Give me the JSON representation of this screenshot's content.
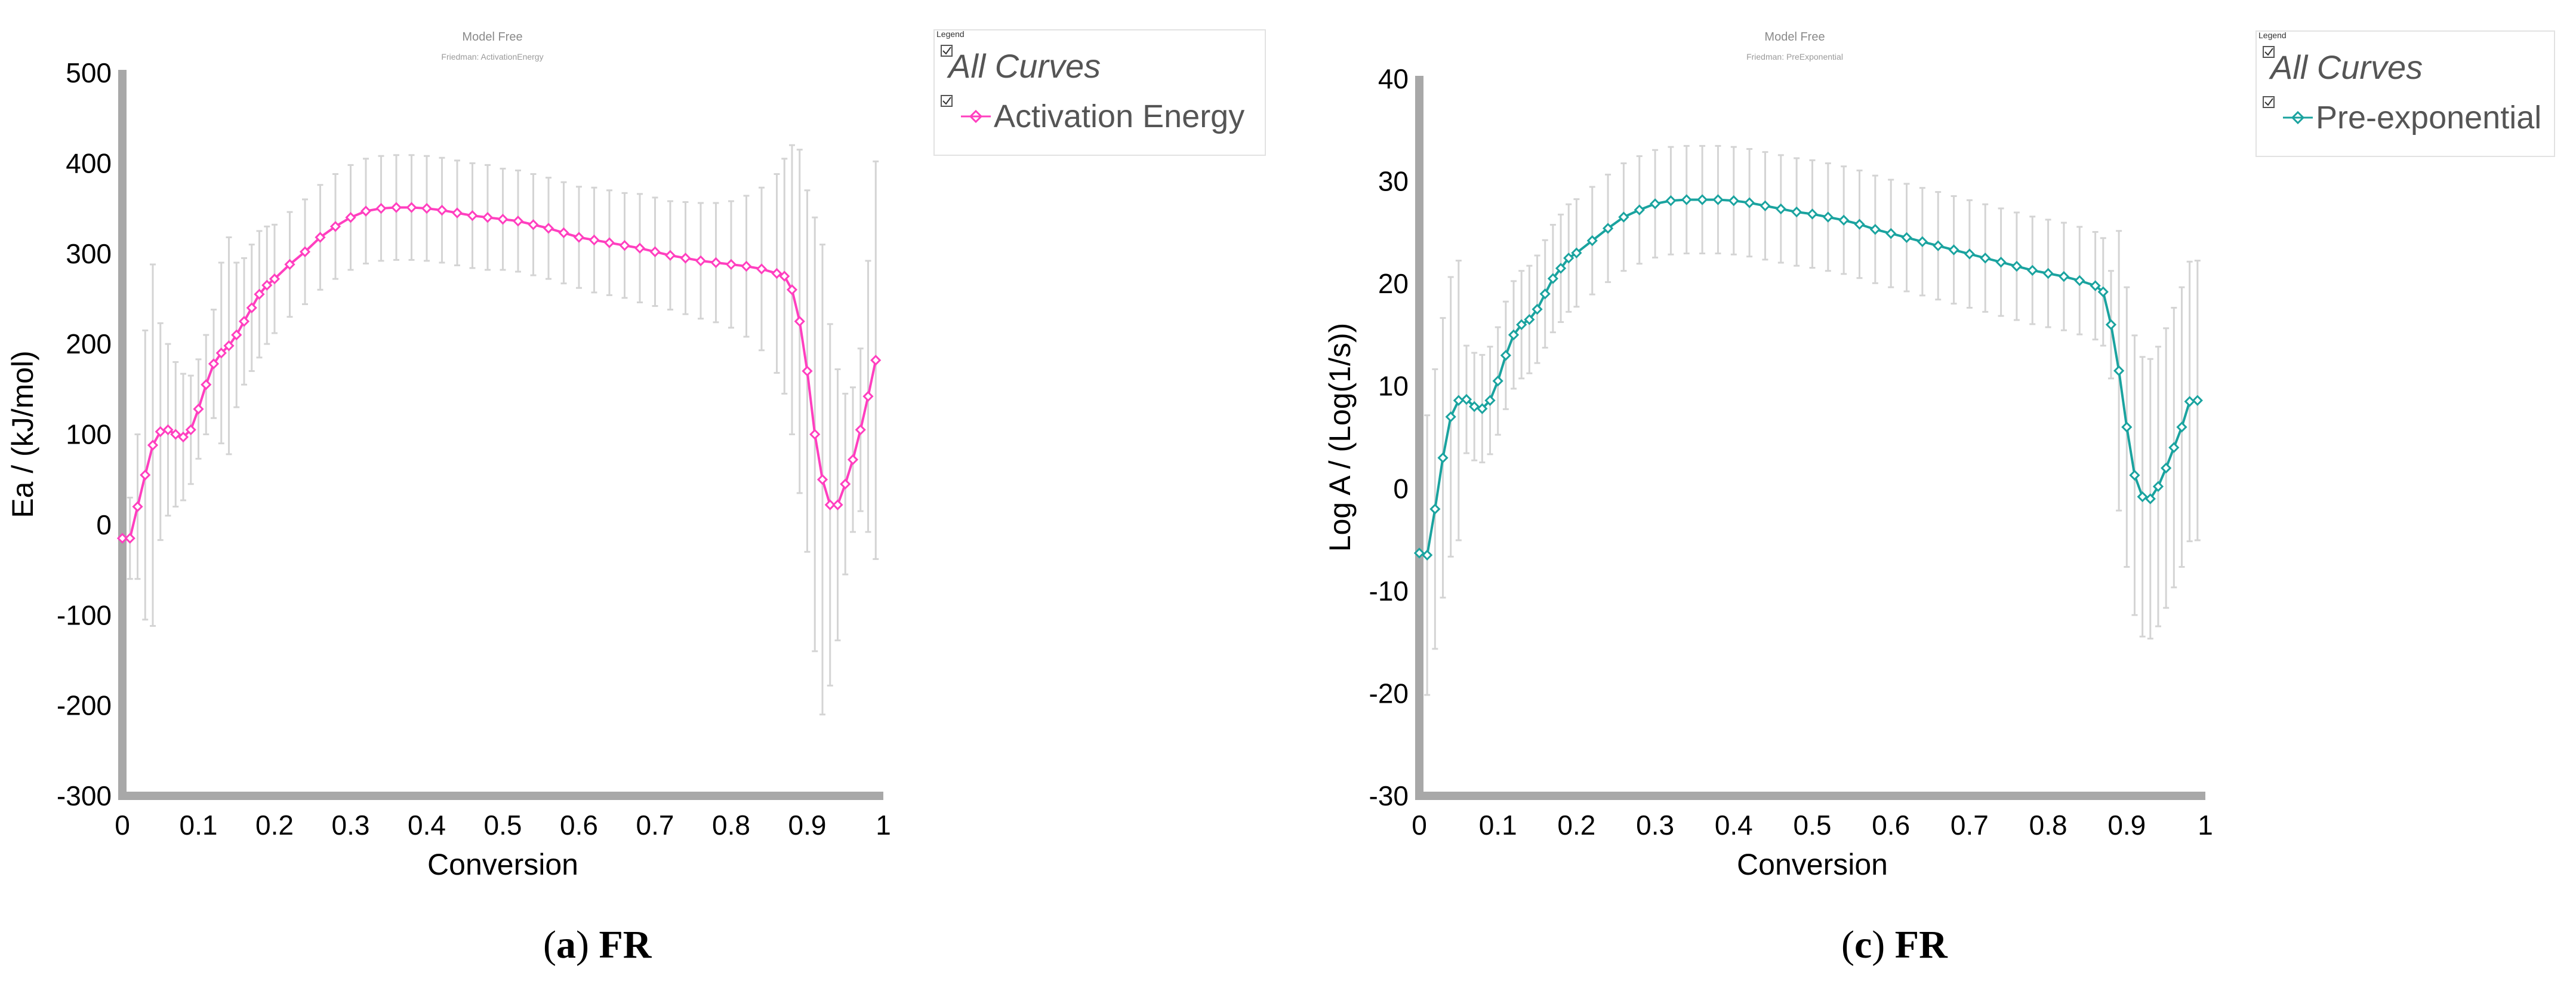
{
  "charts": [
    {
      "header_title": "Model Free",
      "header_subtitle": "Friedman: ActivationEnergy",
      "legend_title": "Legend",
      "legend_items": [
        "All Curves",
        "Activation Energy"
      ],
      "caption_prefix": "(",
      "caption_letter": "a",
      "caption_suffix": ") ",
      "caption_bold": "FR"
    },
    {
      "header_title": "Model Free",
      "header_subtitle": "Friedman: PreExponential",
      "legend_title": "Legend",
      "legend_items": [
        "All Curves",
        "Pre-exponential"
      ],
      "caption_prefix": "(",
      "caption_letter": "c",
      "caption_suffix": ") ",
      "caption_bold": "FR"
    }
  ],
  "chart_data": [
    {
      "type": "line",
      "title": "Model Free",
      "subtitle": "Friedman: ActivationEnergy",
      "xlabel": "Conversion",
      "ylabel": "Ea / (kJ/mol)",
      "xlim": [
        0,
        1
      ],
      "ylim": [
        -300,
        500
      ],
      "xticks": [
        "0",
        "0.1",
        "0.2",
        "0.3",
        "0.4",
        "0.5",
        "0.6",
        "0.7",
        "0.8",
        "0.9",
        "1"
      ],
      "yticks": [
        "500",
        "400",
        "300",
        "200",
        "100",
        "0",
        "-100",
        "-200",
        "-300"
      ],
      "color": "#ff3fbf",
      "series": [
        {
          "name": "Activation Energy",
          "error_bars": true,
          "x": [
            0.0,
            0.01,
            0.02,
            0.03,
            0.04,
            0.05,
            0.06,
            0.07,
            0.08,
            0.09,
            0.1,
            0.11,
            0.12,
            0.13,
            0.14,
            0.15,
            0.16,
            0.17,
            0.18,
            0.19,
            0.2,
            0.22,
            0.24,
            0.26,
            0.28,
            0.3,
            0.32,
            0.34,
            0.36,
            0.38,
            0.4,
            0.42,
            0.44,
            0.46,
            0.48,
            0.5,
            0.52,
            0.54,
            0.56,
            0.58,
            0.6,
            0.62,
            0.64,
            0.66,
            0.68,
            0.7,
            0.72,
            0.74,
            0.76,
            0.78,
            0.8,
            0.82,
            0.84,
            0.86,
            0.87,
            0.88,
            0.89,
            0.9,
            0.91,
            0.92,
            0.93,
            0.94,
            0.95,
            0.96,
            0.97,
            0.98,
            0.99
          ],
          "y": [
            -15,
            -15,
            20,
            55,
            88,
            103,
            105,
            100,
            97,
            105,
            128,
            155,
            178,
            190,
            198,
            210,
            225,
            240,
            255,
            265,
            272,
            288,
            302,
            318,
            330,
            340,
            347,
            350,
            351,
            351,
            350,
            348,
            345,
            342,
            340,
            338,
            336,
            332,
            328,
            323,
            318,
            315,
            312,
            309,
            306,
            302,
            298,
            295,
            292,
            290,
            288,
            286,
            283,
            278,
            275,
            260,
            225,
            170,
            100,
            50,
            22,
            22,
            45,
            72,
            105,
            142,
            182
          ],
          "error": [
            5,
            45,
            80,
            160,
            200,
            120,
            95,
            80,
            70,
            60,
            55,
            55,
            60,
            100,
            120,
            80,
            70,
            70,
            70,
            65,
            60,
            58,
            58,
            58,
            58,
            58,
            58,
            58,
            58,
            58,
            58,
            58,
            58,
            58,
            58,
            56,
            56,
            56,
            56,
            56,
            56,
            58,
            58,
            58,
            60,
            60,
            60,
            62,
            64,
            66,
            70,
            78,
            90,
            110,
            130,
            160,
            190,
            200,
            240,
            260,
            200,
            150,
            100,
            80,
            90,
            150,
            220
          ]
        }
      ]
    },
    {
      "type": "line",
      "title": "Model Free",
      "subtitle": "Friedman: PreExponential",
      "xlabel": "Conversion",
      "ylabel": "Log A / (Log(1/s))",
      "xlim": [
        0,
        1
      ],
      "ylim": [
        -30,
        40
      ],
      "xticks": [
        "0",
        "0.1",
        "0.2",
        "0.3",
        "0.4",
        "0.5",
        "0.6",
        "0.7",
        "0.8",
        "0.9",
        "1"
      ],
      "yticks": [
        "40",
        "30",
        "20",
        "10",
        "0",
        "-10",
        "-20",
        "-30"
      ],
      "color": "#1aa39f",
      "series": [
        {
          "name": "Pre-exponential",
          "error_bars": true,
          "x": [
            0.0,
            0.01,
            0.02,
            0.03,
            0.04,
            0.05,
            0.06,
            0.07,
            0.08,
            0.09,
            0.1,
            0.11,
            0.12,
            0.13,
            0.14,
            0.15,
            0.16,
            0.17,
            0.18,
            0.19,
            0.2,
            0.22,
            0.24,
            0.26,
            0.28,
            0.3,
            0.32,
            0.34,
            0.36,
            0.38,
            0.4,
            0.42,
            0.44,
            0.46,
            0.48,
            0.5,
            0.52,
            0.54,
            0.56,
            0.58,
            0.6,
            0.62,
            0.64,
            0.66,
            0.68,
            0.7,
            0.72,
            0.74,
            0.76,
            0.78,
            0.8,
            0.82,
            0.84,
            0.86,
            0.87,
            0.88,
            0.89,
            0.9,
            0.91,
            0.92,
            0.93,
            0.94,
            0.95,
            0.96,
            0.97,
            0.98,
            0.99
          ],
          "y": [
            -6.3,
            -6.5,
            -2,
            3,
            7,
            8.6,
            8.7,
            8,
            7.8,
            8.6,
            10.5,
            13,
            15,
            16,
            16.5,
            17.5,
            19,
            20.5,
            21.5,
            22.5,
            23,
            24.2,
            25.4,
            26.5,
            27.2,
            27.8,
            28.1,
            28.2,
            28.2,
            28.2,
            28.1,
            27.9,
            27.6,
            27.3,
            27.0,
            26.8,
            26.5,
            26.2,
            25.8,
            25.3,
            24.9,
            24.5,
            24.1,
            23.7,
            23.3,
            22.9,
            22.5,
            22.1,
            21.7,
            21.3,
            21.0,
            20.7,
            20.3,
            19.8,
            19.2,
            16,
            11.5,
            6,
            1.3,
            -0.8,
            -1,
            0.2,
            2,
            4,
            6,
            8.5,
            8.6
          ]
        }
      ]
    }
  ]
}
